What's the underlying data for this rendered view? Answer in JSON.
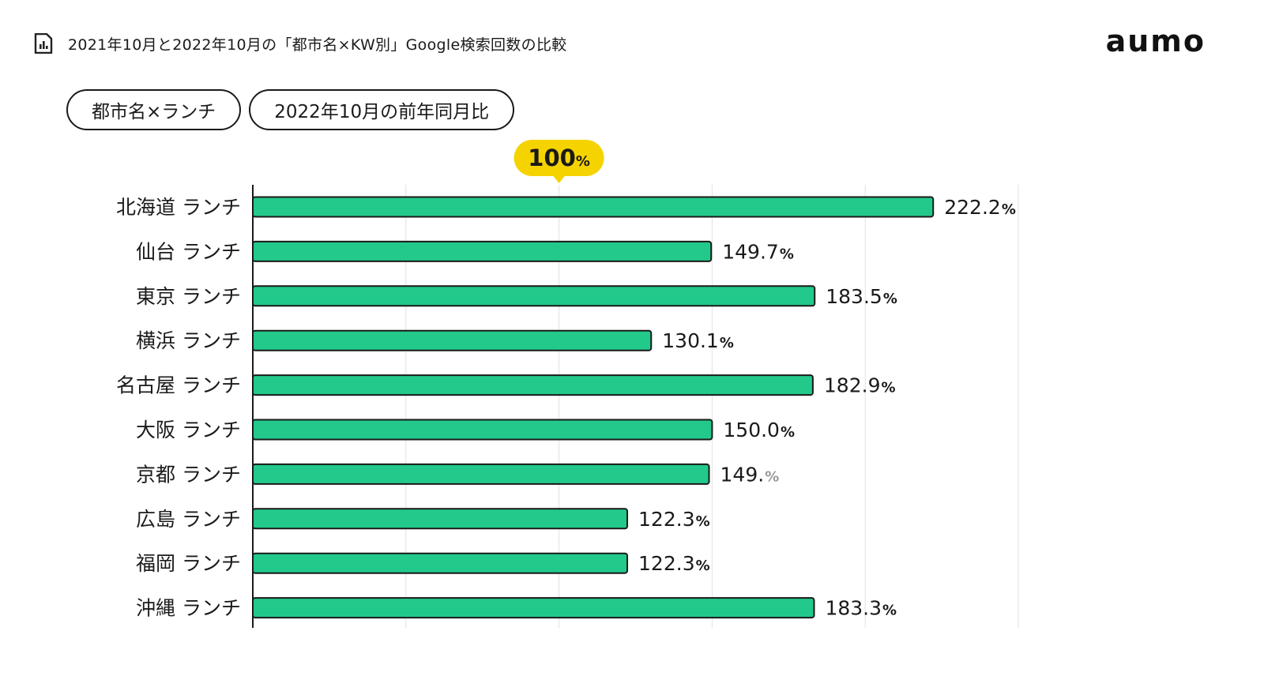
{
  "header": {
    "title": "2021年10月と2022年10月の「都市名×KW別」Google検索回数の比較",
    "icon": "bar-chart-report-icon"
  },
  "brand": {
    "name": "aumo"
  },
  "chips": [
    {
      "label": "都市名×ランチ"
    },
    {
      "label": "2022年10月の前年同月比"
    }
  ],
  "marker": {
    "value_label": "100",
    "unit": "%",
    "color": "#f5d300"
  },
  "colors": {
    "bar": "#22c98a",
    "bar_border": "#1a1a1a",
    "grid": "#e2e2e2",
    "axis": "#1a1a1a"
  },
  "chart_data": {
    "type": "bar",
    "orientation": "horizontal",
    "categories": [
      "北海道 ランチ",
      "仙台 ランチ",
      "東京 ランチ",
      "横浜 ランチ",
      "名古屋 ランチ",
      "大阪 ランチ",
      "京都 ランチ",
      "広島 ランチ",
      "福岡 ランチ",
      "沖縄 ランチ"
    ],
    "values": [
      222.2,
      149.7,
      183.5,
      130.1,
      182.9,
      150.0,
      149.0,
      122.3,
      122.3,
      183.3
    ],
    "value_labels": [
      "222.2",
      "149.7",
      "183.5",
      "130.1",
      "182.9",
      "150.0",
      "149.",
      "122.3",
      "122.3",
      "183.3"
    ],
    "unit": "%",
    "xlim": [
      0,
      250
    ],
    "grid": true,
    "reference_line": 100
  }
}
